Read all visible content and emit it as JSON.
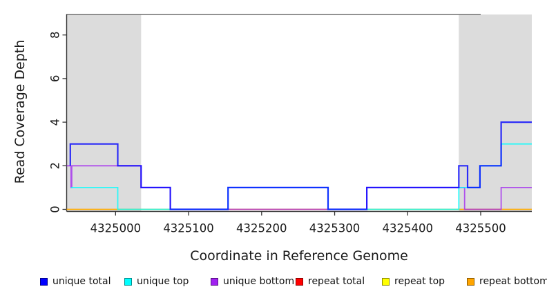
{
  "chart_data": {
    "type": "line",
    "subtype": "step-coverage-plot",
    "title": "",
    "xlabel": "Coordinate in Reference Genome",
    "ylabel": "Read Coverage Depth",
    "xlim": [
      4324933,
      4325570
    ],
    "ylim": [
      0,
      9
    ],
    "x_ticks": [
      4325000,
      4325100,
      4325200,
      4325300,
      4325400,
      4325500
    ],
    "x_tick_labels": [
      "4325000",
      "4325100",
      "4325200",
      "4325300",
      "4325400",
      "4325500"
    ],
    "y_ticks": [
      0,
      2,
      4,
      6,
      8
    ],
    "y_tick_labels": [
      "0",
      "2",
      "4",
      "6",
      "8"
    ],
    "grid": false,
    "legend_position": "bottom",
    "shade_color": "#dcdcdc",
    "axis_color": "#333333",
    "shaded_regions": [
      {
        "name": "left-repeat-region",
        "x1": 4324933,
        "x2": 4325035
      },
      {
        "name": "right-repeat-region",
        "x1": 4325470,
        "x2": 4325570
      }
    ],
    "top_rule": {
      "x1": 4324933,
      "x2": 4325500,
      "y": 8.94,
      "color": "#6e6e6e"
    },
    "series": [
      {
        "name": "repeat-total",
        "label": "repeat total",
        "color": "#FF0000",
        "width": 1.2,
        "opacity": 0.9,
        "points": [
          [
            4324933,
            0
          ],
          [
            4325570,
            0
          ]
        ]
      },
      {
        "name": "repeat-top",
        "label": "repeat top",
        "color": "#FFFF00",
        "width": 1.2,
        "opacity": 0.9,
        "points": [
          [
            4324933,
            0
          ],
          [
            4325570,
            0
          ]
        ]
      },
      {
        "name": "repeat-bottom",
        "label": "repeat bottom",
        "color": "#FFA500",
        "width": 1.6,
        "opacity": 0.85,
        "points": [
          [
            4324933,
            0
          ],
          [
            4325570,
            0
          ]
        ]
      },
      {
        "name": "unique-bottom",
        "label": "unique bottom",
        "color": "#A020F0",
        "width": 1.8,
        "opacity": 0.75,
        "points": [
          [
            4324933,
            2
          ],
          [
            4324939,
            2
          ],
          [
            4324939,
            1
          ],
          [
            4324940,
            1
          ],
          [
            4324940,
            2
          ],
          [
            4325035,
            2
          ],
          [
            4325035,
            1
          ],
          [
            4325075,
            1
          ],
          [
            4325075,
            0
          ],
          [
            4325344,
            0
          ],
          [
            4325344,
            1
          ],
          [
            4325478,
            1
          ],
          [
            4325478,
            0
          ],
          [
            4325528,
            0
          ],
          [
            4325528,
            1
          ],
          [
            4325570,
            1
          ]
        ]
      },
      {
        "name": "unique-top",
        "label": "unique top",
        "color": "#00FFFF",
        "width": 1.8,
        "opacity": 0.8,
        "points": [
          [
            4324939,
            1
          ],
          [
            4325003,
            1
          ],
          [
            4325003,
            0
          ],
          [
            4325154,
            0
          ],
          [
            4325154,
            1
          ],
          [
            4325291,
            1
          ],
          [
            4325291,
            0
          ],
          [
            4325470,
            0
          ],
          [
            4325470,
            1
          ],
          [
            4325499,
            1
          ],
          [
            4325499,
            2
          ],
          [
            4325528,
            2
          ],
          [
            4325528,
            3
          ],
          [
            4325570,
            3
          ]
        ]
      },
      {
        "name": "unique-total",
        "label": "unique total",
        "color": "#0000FF",
        "width": 2.2,
        "opacity": 0.8,
        "points": [
          [
            4324938,
            2
          ],
          [
            4324938,
            3
          ],
          [
            4325003,
            3
          ],
          [
            4325003,
            2
          ],
          [
            4325035,
            2
          ],
          [
            4325035,
            1
          ],
          [
            4325075,
            1
          ],
          [
            4325075,
            0
          ],
          [
            4325154,
            0
          ],
          [
            4325154,
            1
          ],
          [
            4325291,
            1
          ],
          [
            4325291,
            0
          ],
          [
            4325344,
            0
          ],
          [
            4325344,
            1
          ],
          [
            4325470,
            1
          ],
          [
            4325470,
            2
          ],
          [
            4325482,
            2
          ],
          [
            4325482,
            1
          ],
          [
            4325499,
            1
          ],
          [
            4325499,
            2
          ],
          [
            4325528,
            2
          ],
          [
            4325528,
            4
          ],
          [
            4325570,
            4
          ]
        ]
      }
    ],
    "legend_order": [
      "unique-total",
      "unique-top",
      "unique-bottom",
      "repeat-total",
      "repeat-top",
      "repeat-bottom"
    ]
  }
}
